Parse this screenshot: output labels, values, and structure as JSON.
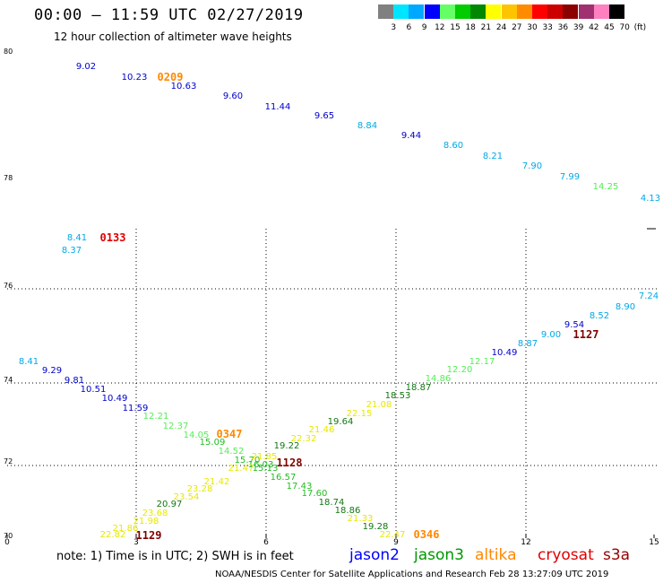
{
  "header": {
    "title": "00:00 – 11:59 UTC 02/27/2019",
    "subtitle": "12 hour collection of altimeter wave heights"
  },
  "legend": {
    "swatches": [
      "#808080",
      "#00e5ff",
      "#00a8ff",
      "#0000ff",
      "#64ff64",
      "#00cc00",
      "#008800",
      "#ffff00",
      "#ffc400",
      "#ff8c00",
      "#ff0000",
      "#cc0000",
      "#8b0000",
      "#a03070",
      "#ff80c0",
      "#000000"
    ],
    "labels": [
      "3",
      "6",
      "9",
      "12",
      "15",
      "18",
      "21",
      "24",
      "27",
      "30",
      "33",
      "36",
      "39",
      "42",
      "45",
      "70",
      "(ft)"
    ]
  },
  "axes": {
    "x_ticks": [
      "0",
      "3",
      "6",
      "9",
      "12",
      "15"
    ],
    "y_ticks": [
      "80",
      "78",
      "76",
      "74",
      "72",
      "70"
    ]
  },
  "readings": [
    {
      "text": "9.02",
      "color": "#0000cc"
    },
    {
      "text": "10.23",
      "color": "#0000cc"
    },
    {
      "text": "10.63",
      "color": "#0000cc"
    },
    {
      "text": "9.60",
      "color": "#0000cc"
    },
    {
      "text": "11.44",
      "color": "#0000cc"
    },
    {
      "text": "9.65",
      "color": "#0000cc"
    },
    {
      "text": "8.84",
      "color": "#00a8e8"
    },
    {
      "text": "9.44",
      "color": "#0000cc"
    },
    {
      "text": "8.60",
      "color": "#00a8e8"
    },
    {
      "text": "8.21",
      "color": "#00a8e8"
    },
    {
      "text": "7.90",
      "color": "#00a8e8"
    },
    {
      "text": "7.99",
      "color": "#00a8e8"
    },
    {
      "text": "14.25",
      "color": "#55ee55"
    },
    {
      "text": "4.13",
      "color": "#00a8e8"
    },
    {
      "text": "8.41",
      "color": "#00a8e8"
    },
    {
      "text": "8.37",
      "color": "#00a8e8"
    },
    {
      "text": "8.41",
      "color": "#00a8e8"
    },
    {
      "text": "9.29",
      "color": "#0000cc"
    },
    {
      "text": "9.81",
      "color": "#0000cc"
    },
    {
      "text": "10.51",
      "color": "#0000cc"
    },
    {
      "text": "10.49",
      "color": "#0000cc"
    },
    {
      "text": "11.59",
      "color": "#0000cc"
    },
    {
      "text": "12.21",
      "color": "#55ee55"
    },
    {
      "text": "12.37",
      "color": "#55ee55"
    },
    {
      "text": "14.05",
      "color": "#55ee55"
    },
    {
      "text": "15.09",
      "color": "#22bb22"
    },
    {
      "text": "14.52",
      "color": "#55ee55"
    },
    {
      "text": "15.70",
      "color": "#22bb22"
    },
    {
      "text": "16.03",
      "color": "#22bb22"
    },
    {
      "text": "15.13",
      "color": "#22bb22"
    },
    {
      "text": "16.57",
      "color": "#22bb22"
    },
    {
      "text": "17.43",
      "color": "#22bb22"
    },
    {
      "text": "17.60",
      "color": "#22bb22"
    },
    {
      "text": "18.74",
      "color": "#117711"
    },
    {
      "text": "18.86",
      "color": "#117711"
    },
    {
      "text": "19.28",
      "color": "#117711"
    },
    {
      "text": "7.24",
      "color": "#00a8e8"
    },
    {
      "text": "8.90",
      "color": "#00a8e8"
    },
    {
      "text": "8.52",
      "color": "#00a8e8"
    },
    {
      "text": "9.54",
      "color": "#0000cc"
    },
    {
      "text": "9.00",
      "color": "#00a8e8"
    },
    {
      "text": "8.87",
      "color": "#00a8e8"
    },
    {
      "text": "10.49",
      "color": "#0000cc"
    },
    {
      "text": "12.17",
      "color": "#55ee55"
    },
    {
      "text": "12.20",
      "color": "#55ee55"
    },
    {
      "text": "14.86",
      "color": "#55ee55"
    },
    {
      "text": "18.87",
      "color": "#117711"
    },
    {
      "text": "18.53",
      "color": "#117711"
    },
    {
      "text": "21.08",
      "color": "#e8e800"
    },
    {
      "text": "22.15",
      "color": "#e8e800"
    },
    {
      "text": "19.64",
      "color": "#117711"
    },
    {
      "text": "21.46",
      "color": "#e8e800"
    },
    {
      "text": "22.32",
      "color": "#e8e800"
    },
    {
      "text": "19.22",
      "color": "#117711"
    },
    {
      "text": "21.85",
      "color": "#e8e800"
    },
    {
      "text": "21.47",
      "color": "#e8e800"
    },
    {
      "text": "21.42",
      "color": "#e8e800"
    },
    {
      "text": "23.28",
      "color": "#e8e800"
    },
    {
      "text": "23.54",
      "color": "#e8e800"
    },
    {
      "text": "20.97",
      "color": "#117711"
    },
    {
      "text": "23.68",
      "color": "#e8e800"
    },
    {
      "text": "21.98",
      "color": "#e8e800"
    },
    {
      "text": "21.86",
      "color": "#e8e800"
    },
    {
      "text": "22.82",
      "color": "#e8e800"
    },
    {
      "text": "21.33",
      "color": "#e8e800"
    },
    {
      "text": "22.47",
      "color": "#e8e800"
    }
  ],
  "passes": [
    {
      "text": "0209",
      "color": "#ff8800"
    },
    {
      "text": "0133",
      "color": "#e00000"
    },
    {
      "text": "1127",
      "color": "#800000"
    },
    {
      "text": "0347",
      "color": "#ff8800"
    },
    {
      "text": "1128",
      "color": "#800000"
    },
    {
      "text": "1129",
      "color": "#800000"
    },
    {
      "text": "0346",
      "color": "#ff8800"
    }
  ],
  "note": "note: 1) Time is in UTC; 2) SWH is in feet",
  "satellites": [
    {
      "name": "jason2",
      "color": "#0000ff"
    },
    {
      "name": "jason3",
      "color": "#009900"
    },
    {
      "name": "altika",
      "color": "#ff8800"
    },
    {
      "name": "cryosat",
      "color": "#e00000"
    },
    {
      "name": "s3a",
      "color": "#990000"
    }
  ],
  "footer": "NOAA/NESDIS Center for Satellite Applications and Research   Feb 28 13:27:09 UTC 2019"
}
